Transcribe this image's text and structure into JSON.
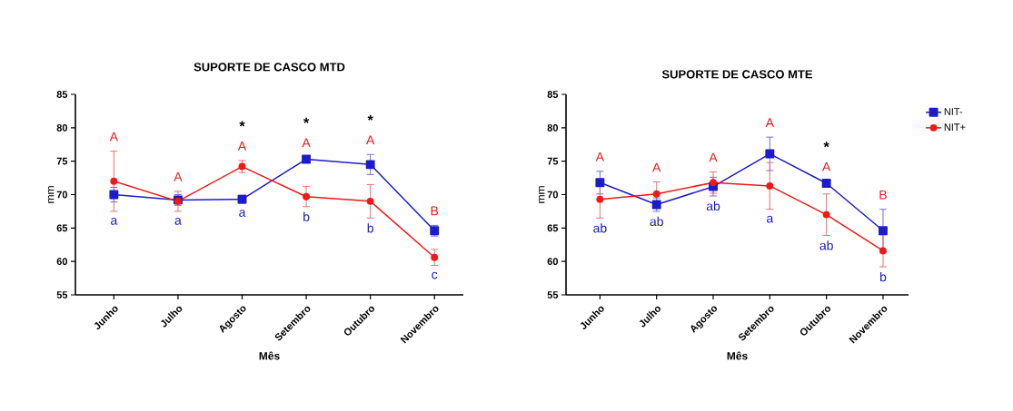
{
  "chart_data": [
    {
      "type": "line",
      "title": "SUPORTE DE CASCO MTD",
      "xlabel": "Mês",
      "ylabel": "mm",
      "categories": [
        "Junho",
        "Julho",
        "Agosto",
        "Setembro",
        "Outubro",
        "Novembro"
      ],
      "ylim": [
        55,
        85
      ],
      "yticks": [
        55,
        60,
        65,
        70,
        75,
        80,
        85
      ],
      "line_style": "solid",
      "series": [
        {
          "color": "#1c1cc8",
          "marker": "square",
          "values": [
            70.0,
            69.2,
            69.3,
            75.3,
            74.5,
            64.6
          ],
          "errors": [
            1.1,
            0.8,
            0.6,
            0.3,
            1.5,
            0.8
          ]
        },
        {
          "color": "#f01818",
          "marker": "circle",
          "values": [
            72.0,
            69.0,
            74.2,
            69.7,
            69.0,
            60.6
          ],
          "errors": [
            4.5,
            1.5,
            0.9,
            1.5,
            2.5,
            1.2
          ]
        }
      ],
      "annotations": [
        "A",
        "a",
        "A",
        "a",
        "*",
        "A",
        "a",
        "*",
        "A",
        "b",
        "*",
        "A",
        "b",
        "B",
        "c"
      ]
    },
    {
      "type": "line",
      "title": "SUPORTE DE CASCO MTE",
      "xlabel": "Mês",
      "ylabel": "mm",
      "categories": [
        "Junho",
        "Julho",
        "Agosto",
        "Setembro",
        "Outubro",
        "Novembro"
      ],
      "ylim": [
        55,
        85
      ],
      "yticks": [
        55,
        60,
        65,
        70,
        75,
        80,
        85
      ],
      "line_style": "solid",
      "legend": "right",
      "series": [
        {
          "name": "NIT-",
          "color": "#1c1cc8",
          "marker": "square",
          "values": [
            71.8,
            68.5,
            71.2,
            76.1,
            71.7,
            64.6
          ],
          "errors": [
            1.7,
            1.0,
            1.4,
            2.5,
            0.3,
            3.2
          ]
        },
        {
          "name": "NIT+",
          "color": "#f01818",
          "marker": "circle",
          "values": [
            69.3,
            70.1,
            71.8,
            71.3,
            67.0,
            61.6
          ],
          "errors": [
            2.8,
            1.8,
            1.6,
            3.5,
            3.1,
            2.4
          ]
        }
      ],
      "annotations": [
        "A",
        "ab",
        "A",
        "ab",
        "A",
        "ab",
        "A",
        "a",
        "*",
        "A",
        "ab",
        "B",
        "b"
      ]
    }
  ]
}
